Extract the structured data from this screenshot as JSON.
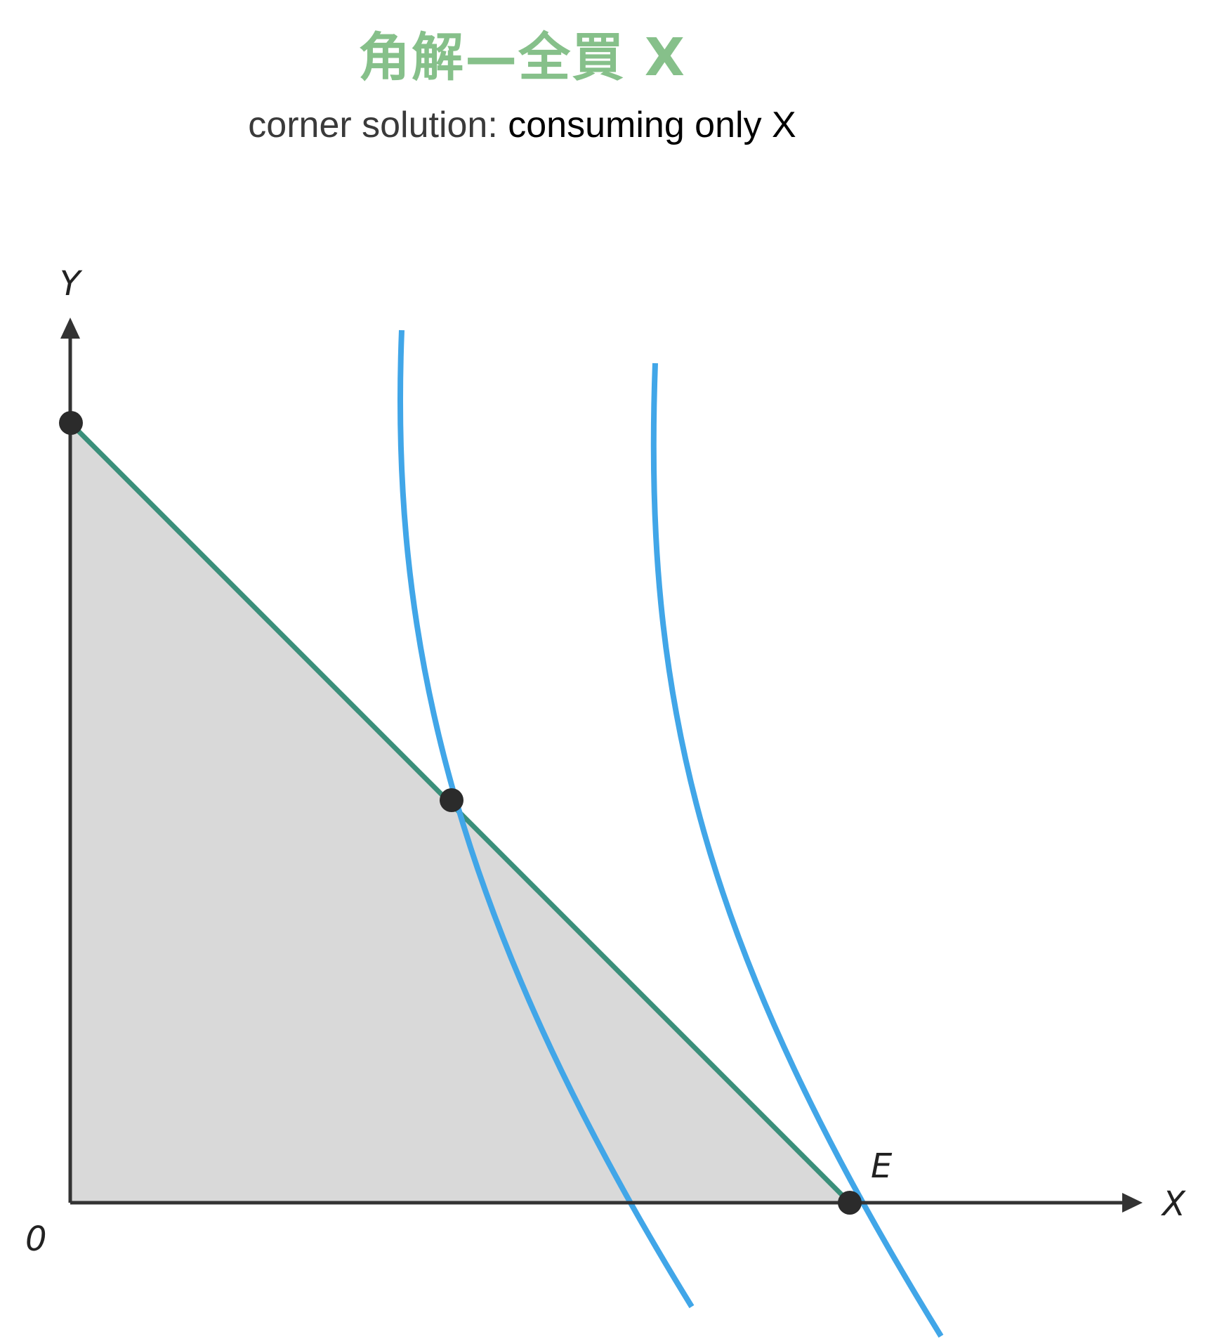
{
  "title": "角解—全買 X",
  "subtitle": {
    "part1": "corner solution:",
    "part2": "consuming only X"
  },
  "axes": {
    "y_label": "Y",
    "x_label": "X",
    "origin_label": "0"
  },
  "points": {
    "equilibrium_label": "E"
  },
  "colors": {
    "title": "#86c08a",
    "budget_line": "#3a8f7a",
    "feasible_region": "#d9d9d9",
    "indifference_curve": "#41a6e8",
    "axis": "#333333",
    "point": "#2b2b2b"
  }
}
